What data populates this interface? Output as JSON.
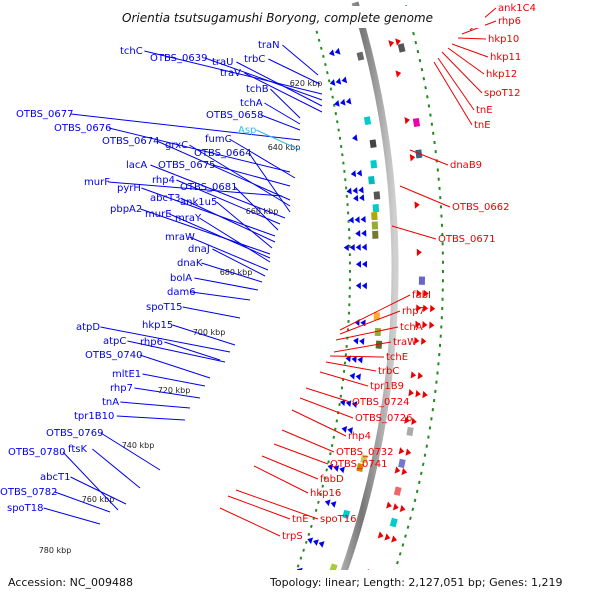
{
  "title": "Orientia tsutsugamushi Boryong, complete genome",
  "accession": "Accession: NC_009488",
  "topology": "Topology: linear; Length: 2,127,051 bp; Genes: 1,219",
  "colors": {
    "forward": "#0000ee",
    "reverse": "#ee0000",
    "backbone": "#888888",
    "tick": "#228b22",
    "cyan_label": "#33bbee"
  },
  "ticks": [
    "620 kbp",
    "640 kbp",
    "660 kbp",
    "680 kbp",
    "700 kbp",
    "720 kbp",
    "740 kbp",
    "760 kbp",
    "780 kbp"
  ],
  "left_labels": [
    {
      "text": "traN"
    },
    {
      "text": "trbC"
    },
    {
      "text": "tchC"
    },
    {
      "text": "OTBS_0639"
    },
    {
      "text": "traU"
    },
    {
      "text": "traV"
    },
    {
      "text": "tchB"
    },
    {
      "text": "tchA"
    },
    {
      "text": "OTBS_0658"
    },
    {
      "text": "OTBS_0677"
    },
    {
      "text": "OTBS_0676"
    },
    {
      "text": "fumC"
    },
    {
      "text": "Asp",
      "cyan": true
    },
    {
      "text": "OTBS_0674"
    },
    {
      "text": "grxC"
    },
    {
      "text": "OTBS_0664"
    },
    {
      "text": "lacA"
    },
    {
      "text": "OTBS_0675"
    },
    {
      "text": "rhp4"
    },
    {
      "text": "murF"
    },
    {
      "text": "OTBS_0681"
    },
    {
      "text": "pyrH"
    },
    {
      "text": "abcT3"
    },
    {
      "text": "ank1u5"
    },
    {
      "text": "pbpA2"
    },
    {
      "text": "murE"
    },
    {
      "text": "mraY"
    },
    {
      "text": "mraW"
    },
    {
      "text": "dnaJ"
    },
    {
      "text": "dnaK"
    },
    {
      "text": "bolA"
    },
    {
      "text": "dam6"
    },
    {
      "text": "spoT15"
    },
    {
      "text": "atpD"
    },
    {
      "text": "hkp15"
    },
    {
      "text": "atpC"
    },
    {
      "text": "rhp6"
    },
    {
      "text": "OTBS_0740"
    },
    {
      "text": "mltE1"
    },
    {
      "text": "rhp7"
    },
    {
      "text": "tnA"
    },
    {
      "text": "tpr1B10"
    },
    {
      "text": "OTBS_0769"
    },
    {
      "text": "OTBS_0780"
    },
    {
      "text": "ftsK"
    },
    {
      "text": "abcT1"
    },
    {
      "text": "OTBS_0782"
    },
    {
      "text": "spoT18"
    }
  ],
  "right_labels": [
    {
      "text": "ank1C4"
    },
    {
      "text": "rhp6"
    },
    {
      "text": "hkp10"
    },
    {
      "text": "hkp11"
    },
    {
      "text": "hkp12"
    },
    {
      "text": "spoT12"
    },
    {
      "text": "tnE"
    },
    {
      "text": "tnE"
    },
    {
      "text": "dnaB9"
    },
    {
      "text": "OTBS_0662"
    },
    {
      "text": "OTBS_0671"
    },
    {
      "text": "fabI"
    },
    {
      "text": "rhp7"
    },
    {
      "text": "tchA"
    },
    {
      "text": "traW"
    },
    {
      "text": "tchE"
    },
    {
      "text": "trbC"
    },
    {
      "text": "tpr1B9"
    },
    {
      "text": "OTBS_0724"
    },
    {
      "text": "OTBS_0726"
    },
    {
      "text": "rhp4"
    },
    {
      "text": "OTBS_0732"
    },
    {
      "text": "OTBS_0741"
    },
    {
      "text": "fabD"
    },
    {
      "text": "hkp16"
    },
    {
      "text": "spoT16"
    },
    {
      "text": "tnE"
    },
    {
      "text": "trpS"
    }
  ]
}
